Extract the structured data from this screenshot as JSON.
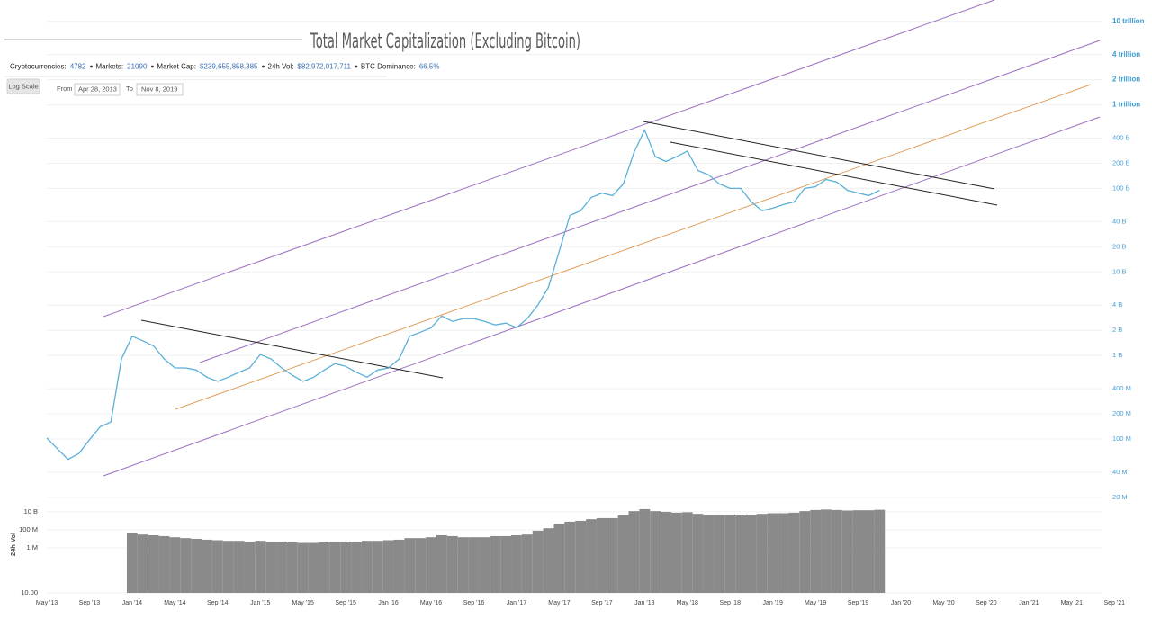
{
  "stats": [
    {
      "label": "Cryptocurrencies:",
      "value": "4782"
    },
    {
      "label": "Markets:",
      "value": "21090"
    },
    {
      "label": "Market Cap:",
      "value": "$239,655,858,385"
    },
    {
      "label": "24h Vol:",
      "value": "$82,972,017,711"
    },
    {
      "label": "BTC Dominance:",
      "value": "66.5%"
    }
  ],
  "controls": {
    "log_scale": "Log Scale",
    "from_label": "From",
    "from": "Apr 28, 2013",
    "to_label": "To",
    "to": "Nov 8, 2019"
  },
  "chart_data": [
    {
      "type": "line",
      "title": "Total Market Capitalization (Excluding Bitcoin)",
      "color": "#5ab0d8",
      "log_scale": true,
      "grid": true,
      "xlim": [
        "2013-05",
        "2021-11"
      ],
      "x": [
        "2013-05",
        "2013-06",
        "2013-07",
        "2013-08",
        "2013-09",
        "2013-10",
        "2013-11",
        "2013-12",
        "2014-01",
        "2014-02",
        "2014-03",
        "2014-04",
        "2014-05",
        "2014-06",
        "2014-07",
        "2014-08",
        "2014-09",
        "2014-10",
        "2014-11",
        "2014-12",
        "2015-01",
        "2015-02",
        "2015-03",
        "2015-04",
        "2015-05",
        "2015-06",
        "2015-07",
        "2015-08",
        "2015-09",
        "2015-10",
        "2015-11",
        "2015-12",
        "2016-01",
        "2016-02",
        "2016-03",
        "2016-04",
        "2016-05",
        "2016-06",
        "2016-07",
        "2016-08",
        "2016-09",
        "2016-10",
        "2016-11",
        "2016-12",
        "2017-01",
        "2017-02",
        "2017-03",
        "2017-04",
        "2017-05",
        "2017-06",
        "2017-07",
        "2017-08",
        "2017-09",
        "2017-10",
        "2017-11",
        "2017-12",
        "2018-01",
        "2018-02",
        "2018-03",
        "2018-04",
        "2018-05",
        "2018-06",
        "2018-07",
        "2018-08",
        "2018-09",
        "2018-10",
        "2018-11",
        "2018-12",
        "2019-01",
        "2019-02",
        "2019-03",
        "2019-04",
        "2019-05",
        "2019-06",
        "2019-07",
        "2019-08",
        "2019-09",
        "2019-10",
        "2019-11"
      ],
      "values": [
        103000000,
        76000000,
        57000000,
        67000000,
        98000000,
        140000000,
        160000000,
        910000000,
        1700000000,
        1500000000,
        1300000000,
        910000000,
        710000000,
        710000000,
        670000000,
        550000000,
        490000000,
        550000000,
        630000000,
        710000000,
        1030000000,
        910000000,
        710000000,
        580000000,
        490000000,
        550000000,
        670000000,
        800000000,
        740000000,
        630000000,
        550000000,
        670000000,
        710000000,
        910000000,
        1700000000,
        1900000000,
        2150000000,
        2970000000,
        2560000000,
        2760000000,
        2760000000,
        2560000000,
        2320000000,
        2440000000,
        2150000000,
        2760000000,
        4000000000,
        6600000000,
        17700000000,
        47500000000,
        54000000000,
        78000000000,
        88000000000,
        82000000000,
        113000000000,
        270000000000,
        500000000000,
        240000000000,
        210000000000,
        240000000000,
        280000000000,
        164000000000,
        145000000000,
        113000000000,
        100000000000,
        100000000000,
        69000000000,
        54000000000,
        58000000000,
        64000000000,
        69000000000,
        100000000000,
        105000000000,
        128000000000,
        119000000000,
        95000000000,
        88000000000,
        82000000000,
        95000000000
      ],
      "ylim": [
        19000000,
        18000000000000
      ],
      "yticks": [
        {
          "value": 10000000000000,
          "label": "10 trillion"
        },
        {
          "value": 4000000000000,
          "label": "4 trillion"
        },
        {
          "value": 2000000000000,
          "label": "2 trillion"
        },
        {
          "value": 1000000000000,
          "label": "1 trillion"
        },
        {
          "value": 400000000000,
          "label": "400 B"
        },
        {
          "value": 200000000000,
          "label": "200 B"
        },
        {
          "value": 100000000000,
          "label": "100 B"
        },
        {
          "value": 40000000000,
          "label": "40 B"
        },
        {
          "value": 20000000000,
          "label": "20 B"
        },
        {
          "value": 10000000000,
          "label": "10 B"
        },
        {
          "value": 4000000000,
          "label": "4 B"
        },
        {
          "value": 2000000000,
          "label": "2 B"
        },
        {
          "value": 1000000000,
          "label": "1 B"
        },
        {
          "value": 400000000,
          "label": "400 M"
        },
        {
          "value": 200000000,
          "label": "200 M"
        },
        {
          "value": 100000000,
          "label": "100 M"
        },
        {
          "value": 40000000,
          "label": "40 M"
        },
        {
          "value": 20000000,
          "label": "20 M"
        }
      ]
    },
    {
      "type": "bar",
      "y_label": "24h Vol",
      "color": "#8a8a8a",
      "log_scale": true,
      "grid": true,
      "xlim": [
        "2013-05",
        "2021-11"
      ],
      "x": [
        "2014-01",
        "2014-02",
        "2014-03",
        "2014-04",
        "2014-05",
        "2014-06",
        "2014-07",
        "2014-08",
        "2014-09",
        "2014-10",
        "2014-11",
        "2014-12",
        "2015-01",
        "2015-02",
        "2015-03",
        "2015-04",
        "2015-05",
        "2015-06",
        "2015-07",
        "2015-08",
        "2015-09",
        "2015-10",
        "2015-11",
        "2015-12",
        "2016-01",
        "2016-02",
        "2016-03",
        "2016-04",
        "2016-05",
        "2016-06",
        "2016-07",
        "2016-08",
        "2016-09",
        "2016-10",
        "2016-11",
        "2016-12",
        "2017-01",
        "2017-02",
        "2017-03",
        "2017-04",
        "2017-05",
        "2017-06",
        "2017-07",
        "2017-08",
        "2017-09",
        "2017-10",
        "2017-11",
        "2017-12",
        "2018-01",
        "2018-02",
        "2018-03",
        "2018-04",
        "2018-05",
        "2018-06",
        "2018-07",
        "2018-08",
        "2018-09",
        "2018-10",
        "2018-11",
        "2018-12",
        "2019-01",
        "2019-02",
        "2019-03",
        "2019-04",
        "2019-05",
        "2019-06",
        "2019-07",
        "2019-08",
        "2019-09",
        "2019-10",
        "2019-11"
      ],
      "values": [
        50000000,
        30000000,
        25000000,
        20000000,
        15000000,
        12000000,
        10000000,
        8000000,
        7000000,
        6000000,
        6000000,
        5000000,
        6000000,
        5000000,
        5000000,
        4000000,
        3500000,
        3500000,
        4000000,
        5000000,
        5000000,
        4000000,
        6000000,
        6000000,
        7000000,
        8000000,
        12000000,
        12000000,
        15000000,
        25000000,
        20000000,
        15000000,
        15000000,
        15000000,
        20000000,
        20000000,
        25000000,
        30000000,
        80000000,
        150000000,
        400000000,
        800000000,
        1000000000,
        1500000000,
        2000000000,
        2000000000,
        4000000000,
        12000000000,
        20000000000,
        12000000000,
        10000000000,
        8000000000,
        9000000000,
        6000000000,
        5000000000,
        5000000000,
        5000000000,
        4000000000,
        5000000000,
        6000000000,
        7000000000,
        7000000000,
        8000000000,
        12000000000,
        16000000000,
        18000000000,
        16000000000,
        14000000000,
        15000000000,
        15000000000,
        17000000000
      ],
      "ylim": [
        10,
        780000000000
      ],
      "yticks": [
        {
          "value": 10000000000,
          "label": "10 B"
        },
        {
          "value": 100000000,
          "label": "100 M"
        },
        {
          "value": 1000000,
          "label": "1 M"
        },
        {
          "value": 10,
          "label": "10.00"
        }
      ],
      "xticks": [
        {
          "value": "2013-05",
          "label": "May '13"
        },
        {
          "value": "2013-09",
          "label": "Sep '13"
        },
        {
          "value": "2014-01",
          "label": "Jan '14"
        },
        {
          "value": "2014-05",
          "label": "May '14"
        },
        {
          "value": "2014-09",
          "label": "Sep '14"
        },
        {
          "value": "2015-01",
          "label": "Jan '15"
        },
        {
          "value": "2015-05",
          "label": "May '15"
        },
        {
          "value": "2015-09",
          "label": "Sep '15"
        },
        {
          "value": "2016-01",
          "label": "Jan '16"
        },
        {
          "value": "2016-05",
          "label": "May '16"
        },
        {
          "value": "2016-09",
          "label": "Sep '16"
        },
        {
          "value": "2017-01",
          "label": "Jan '17"
        },
        {
          "value": "2017-05",
          "label": "May '17"
        },
        {
          "value": "2017-09",
          "label": "Sep '17"
        },
        {
          "value": "2018-01",
          "label": "Jan '18"
        },
        {
          "value": "2018-05",
          "label": "May '18"
        },
        {
          "value": "2018-09",
          "label": "Sep '18"
        },
        {
          "value": "2019-01",
          "label": "Jan '19"
        },
        {
          "value": "2019-05",
          "label": "May '19"
        },
        {
          "value": "2019-09",
          "label": "Sep '19"
        },
        {
          "value": "2020-01",
          "label": "Jan '20"
        },
        {
          "value": "2020-05",
          "label": "May '20"
        },
        {
          "value": "2020-09",
          "label": "Sep '20"
        },
        {
          "value": "2021-01",
          "label": "Jan '21"
        },
        {
          "value": "2021-05",
          "label": "May '21"
        },
        {
          "value": "2021-09",
          "label": "Sep '21"
        }
      ]
    }
  ]
}
